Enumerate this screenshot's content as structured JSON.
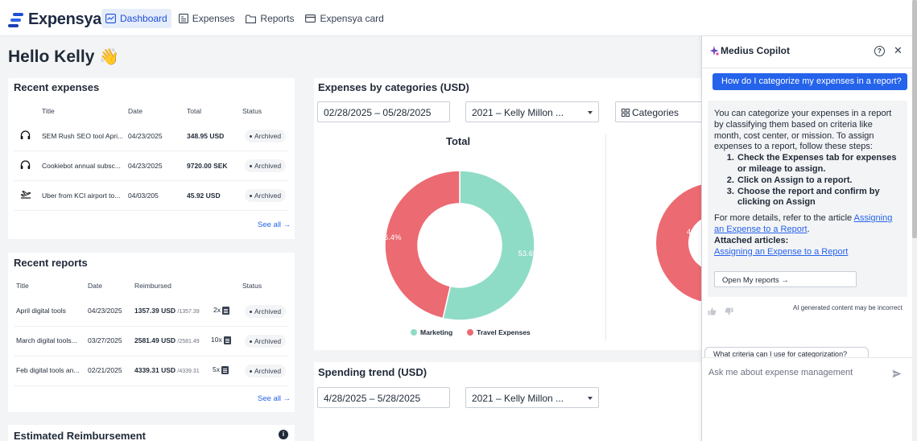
{
  "app": {
    "name": "Expensya"
  },
  "nav": [
    {
      "label": "Dashboard",
      "active": true,
      "icon": "dashboard-icon"
    },
    {
      "label": "Expenses",
      "active": false,
      "icon": "receipt-icon"
    },
    {
      "label": "Reports",
      "active": false,
      "icon": "folder-icon"
    },
    {
      "label": "Expensya card",
      "active": false,
      "icon": "card-icon"
    }
  ],
  "greeting": {
    "text": "Hello Kelly",
    "emoji": "👋"
  },
  "recent_expenses": {
    "title": "Recent expenses",
    "columns": [
      "Title",
      "Date",
      "Total",
      "Status"
    ],
    "rows": [
      {
        "icon": "headphones-icon",
        "title": "SEM Rush SEO tool Apri...",
        "date": "04/23/2025",
        "total": "348.95 USD",
        "status": "Archived"
      },
      {
        "icon": "headphones-icon",
        "title": "Cookiebot annual subsc...",
        "date": "04/23/2025",
        "total": "9720.00 SEK",
        "status": "Archived"
      },
      {
        "icon": "plane-icon",
        "title": "Uber from KCI airport to...",
        "date": "04/03/205",
        "total": "45.92 USD",
        "status": "Archived"
      }
    ],
    "see_all": "See all →"
  },
  "recent_reports": {
    "title": "Recent reports",
    "columns": [
      "Title",
      "Date",
      "Reimbursed",
      "Status"
    ],
    "rows": [
      {
        "title": "April digital tools",
        "date": "04/23/2025",
        "reimbursed": "1357.39 USD",
        "reimbursed_of": "/1357.39",
        "count": "2x",
        "status": "Archived"
      },
      {
        "title": "March digital tools...",
        "date": "03/27/2025",
        "reimbursed": "2581.49 USD",
        "reimbursed_of": "/2581.49",
        "count": "10x",
        "status": "Archived"
      },
      {
        "title": "Feb digital tools an...",
        "date": "02/21/2025",
        "reimbursed": "4339.31 USD",
        "reimbursed_of": "/4339.31",
        "count": "5x",
        "status": "Archived"
      }
    ],
    "see_all": "See all →"
  },
  "estimated_reimbursement": {
    "title": "Estimated Reimbursement",
    "info": "i"
  },
  "categories_card": {
    "title": "Expenses by categories (USD)",
    "date_range": "02/28/2025 – 05/28/2025",
    "policy": "2021 – Kelly Millon ...",
    "group_by": "Categories",
    "total_label": "Total",
    "chart_data": {
      "type": "pie",
      "title": "Total",
      "labels": [
        "Marketing",
        "Travel Expenses"
      ],
      "values": [
        53.6,
        46.4
      ],
      "value_labels": [
        "53.6%",
        "46.4%"
      ],
      "colors": [
        "#8fdcc6",
        "#ec6a72"
      ],
      "legend_position": "bottom"
    }
  },
  "spending_trend": {
    "title": "Spending trend (USD)",
    "date_range": "4/28/2025 – 5/28/2025",
    "policy": "2021 – Kelly Millon ..."
  },
  "copilot": {
    "title": "Medius Copilot",
    "user_message": "How do I categorize my expenses in a report?",
    "answer_intro": "You can categorize your expenses in a report by classifying them based on criteria like month, cost center, or mission. To assign expenses to a report, follow these steps:",
    "steps": [
      "Check the Expenses tab for expenses or mileage to assign.",
      "Click on Assign to a report.",
      "Choose the report and confirm by clicking on Assign"
    ],
    "details_prefix": "For more details, refer to the article ",
    "details_link": "Assigning an Expense to a Report",
    "details_suffix": ".",
    "attached_label": "Attached articles:",
    "attached_link": "Assigning an Expense to a Report",
    "open_button": "Open My reports →",
    "ai_note": "AI generated content may be incorrect",
    "suggestion": "What criteria can I use for categorization?",
    "input_placeholder": "Ask me about expense management"
  }
}
